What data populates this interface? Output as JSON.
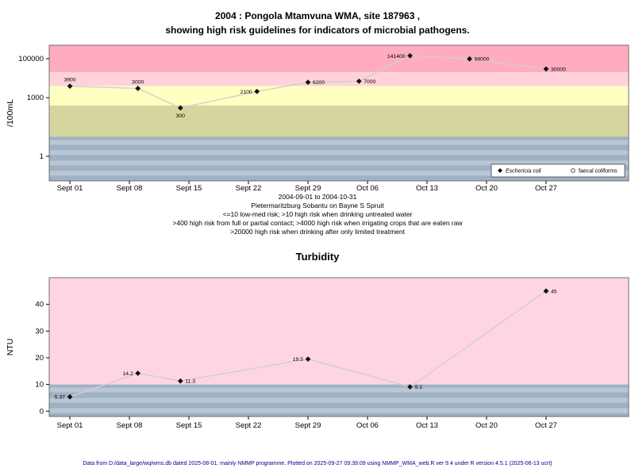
{
  "page": {
    "background": "#ffffff",
    "footer": "Data from D:/data_large/wq/wms.db dated 2025-08-01, mainly NMMP programme. Plotted on 2025-09-27 09:39:09 using NMMP_WMA_web.R ver 9.4 under R version 4.5.1 (2025-06-13 ucrt)"
  },
  "chart_data": [
    {
      "type": "line",
      "title_lines": [
        "2004 : Pongola Mtamvuna WMA, site 187963 ,",
        "showing high risk guidelines for indicators of microbial pathogens."
      ],
      "ylabel": "/100mL",
      "yscale": "log",
      "ylim": [
        0.055,
        490000
      ],
      "yticks": [
        1,
        1000,
        100000
      ],
      "ytick_labels": [
        "1",
        "1000",
        "100000"
      ],
      "x_unit": "days since 2004-09-01",
      "xlim": [
        -2.43,
        65.71
      ],
      "xticks": [
        0,
        7,
        14,
        21,
        28,
        35,
        42,
        49,
        56
      ],
      "xtick_labels": [
        "Sept 01",
        "Sept 08",
        "Sept 15",
        "Sept 22",
        "Sept 29",
        "Oct 06",
        "Oct 13",
        "Oct 20",
        "Oct 27"
      ],
      "bands": [
        {
          "from": 20000,
          "to": "top",
          "color": "#ffacbf"
        },
        {
          "from": 4000,
          "to": 20000,
          "color": "#ffd2db"
        },
        {
          "from": 400,
          "to": 4000,
          "color": "#ffffc2"
        },
        {
          "from": 10,
          "to": 400,
          "color": "#d5d59d"
        },
        {
          "from": "bottom",
          "to": 10,
          "color": "#9fb1c5",
          "striped": true,
          "stripe_color": "#bac6d4"
        }
      ],
      "series": [
        {
          "name": "Eschericia coli",
          "marker": "diamond",
          "line_color": "#cfcfcf",
          "points": [
            {
              "x": 0,
              "y": 3900,
              "label": "3900",
              "label_pos": "above"
            },
            {
              "x": 8,
              "y": 3000,
              "label": "3000",
              "label_pos": "above"
            },
            {
              "x": 13,
              "y": 300,
              "label": "300",
              "label_pos": "below"
            },
            {
              "x": 22,
              "y": 2100,
              "label": "2100",
              "label_pos": "left"
            },
            {
              "x": 28,
              "y": 6200,
              "label": "6200",
              "label_pos": "right"
            },
            {
              "x": 34,
              "y": 7000,
              "label": "7000",
              "label_pos": "right"
            },
            {
              "x": 40,
              "y": 141400,
              "label": "141400",
              "label_pos": "left"
            },
            {
              "x": 47,
              "y": 98000,
              "label": "98000",
              "label_pos": "right"
            },
            {
              "x": 56,
              "y": 30000,
              "label": "30000",
              "label_pos": "right"
            }
          ]
        }
      ],
      "legend": [
        {
          "marker": "diamond",
          "label": "Eschericia coli",
          "italic": true
        },
        {
          "marker": "circle",
          "label": "faecal coliforms",
          "italic": false
        }
      ],
      "caption_lines": [
        "2004-09-01 to 2004-10-31",
        "Pietermaritzburg Sobantu on Bayne S Spruit",
        "<=10 low-med risk; >10 high risk when drinking untreated water",
        ">400 high risk from full or partial contact; >4000 high risk when irrigating crops that are eaten raw",
        ">20000 high risk when drinking after only limited treatment"
      ]
    },
    {
      "type": "line",
      "title": "Turbidity",
      "ylabel": "NTU",
      "yscale": "linear",
      "ylim": [
        -2,
        50
      ],
      "yticks": [
        0,
        10,
        20,
        30,
        40
      ],
      "ytick_labels": [
        "0",
        "10",
        "20",
        "30",
        "40"
      ],
      "x_unit": "days since 2004-09-01",
      "xlim": [
        -2.43,
        65.71
      ],
      "xticks": [
        0,
        7,
        14,
        21,
        28,
        35,
        42,
        49,
        56
      ],
      "xtick_labels": [
        "Sept 01",
        "Sept 08",
        "Sept 15",
        "Sept 22",
        "Sept 29",
        "Oct 06",
        "Oct 13",
        "Oct 20",
        "Oct 27"
      ],
      "bands": [
        {
          "from": 10,
          "to": "top",
          "color": "#ffd5e6"
        },
        {
          "from": "bottom",
          "to": 10,
          "color": "#9fb1c5",
          "striped": true,
          "stripe_color": "#bac6d4"
        }
      ],
      "series": [
        {
          "name": "Turbidity",
          "marker": "diamond",
          "line_color": "#cfcfcf",
          "points": [
            {
              "x": 0,
              "y": 5.37,
              "label": "5.37",
              "label_pos": "left"
            },
            {
              "x": 8,
              "y": 14.2,
              "label": "14.2",
              "label_pos": "left"
            },
            {
              "x": 13,
              "y": 11.3,
              "label": "11.3",
              "label_pos": "right"
            },
            {
              "x": 28,
              "y": 19.5,
              "label": "19.5",
              "label_pos": "left"
            },
            {
              "x": 40,
              "y": 9.1,
              "label": "9.1",
              "label_pos": "right"
            },
            {
              "x": 56,
              "y": 45,
              "label": "45",
              "label_pos": "right"
            }
          ]
        }
      ]
    }
  ]
}
